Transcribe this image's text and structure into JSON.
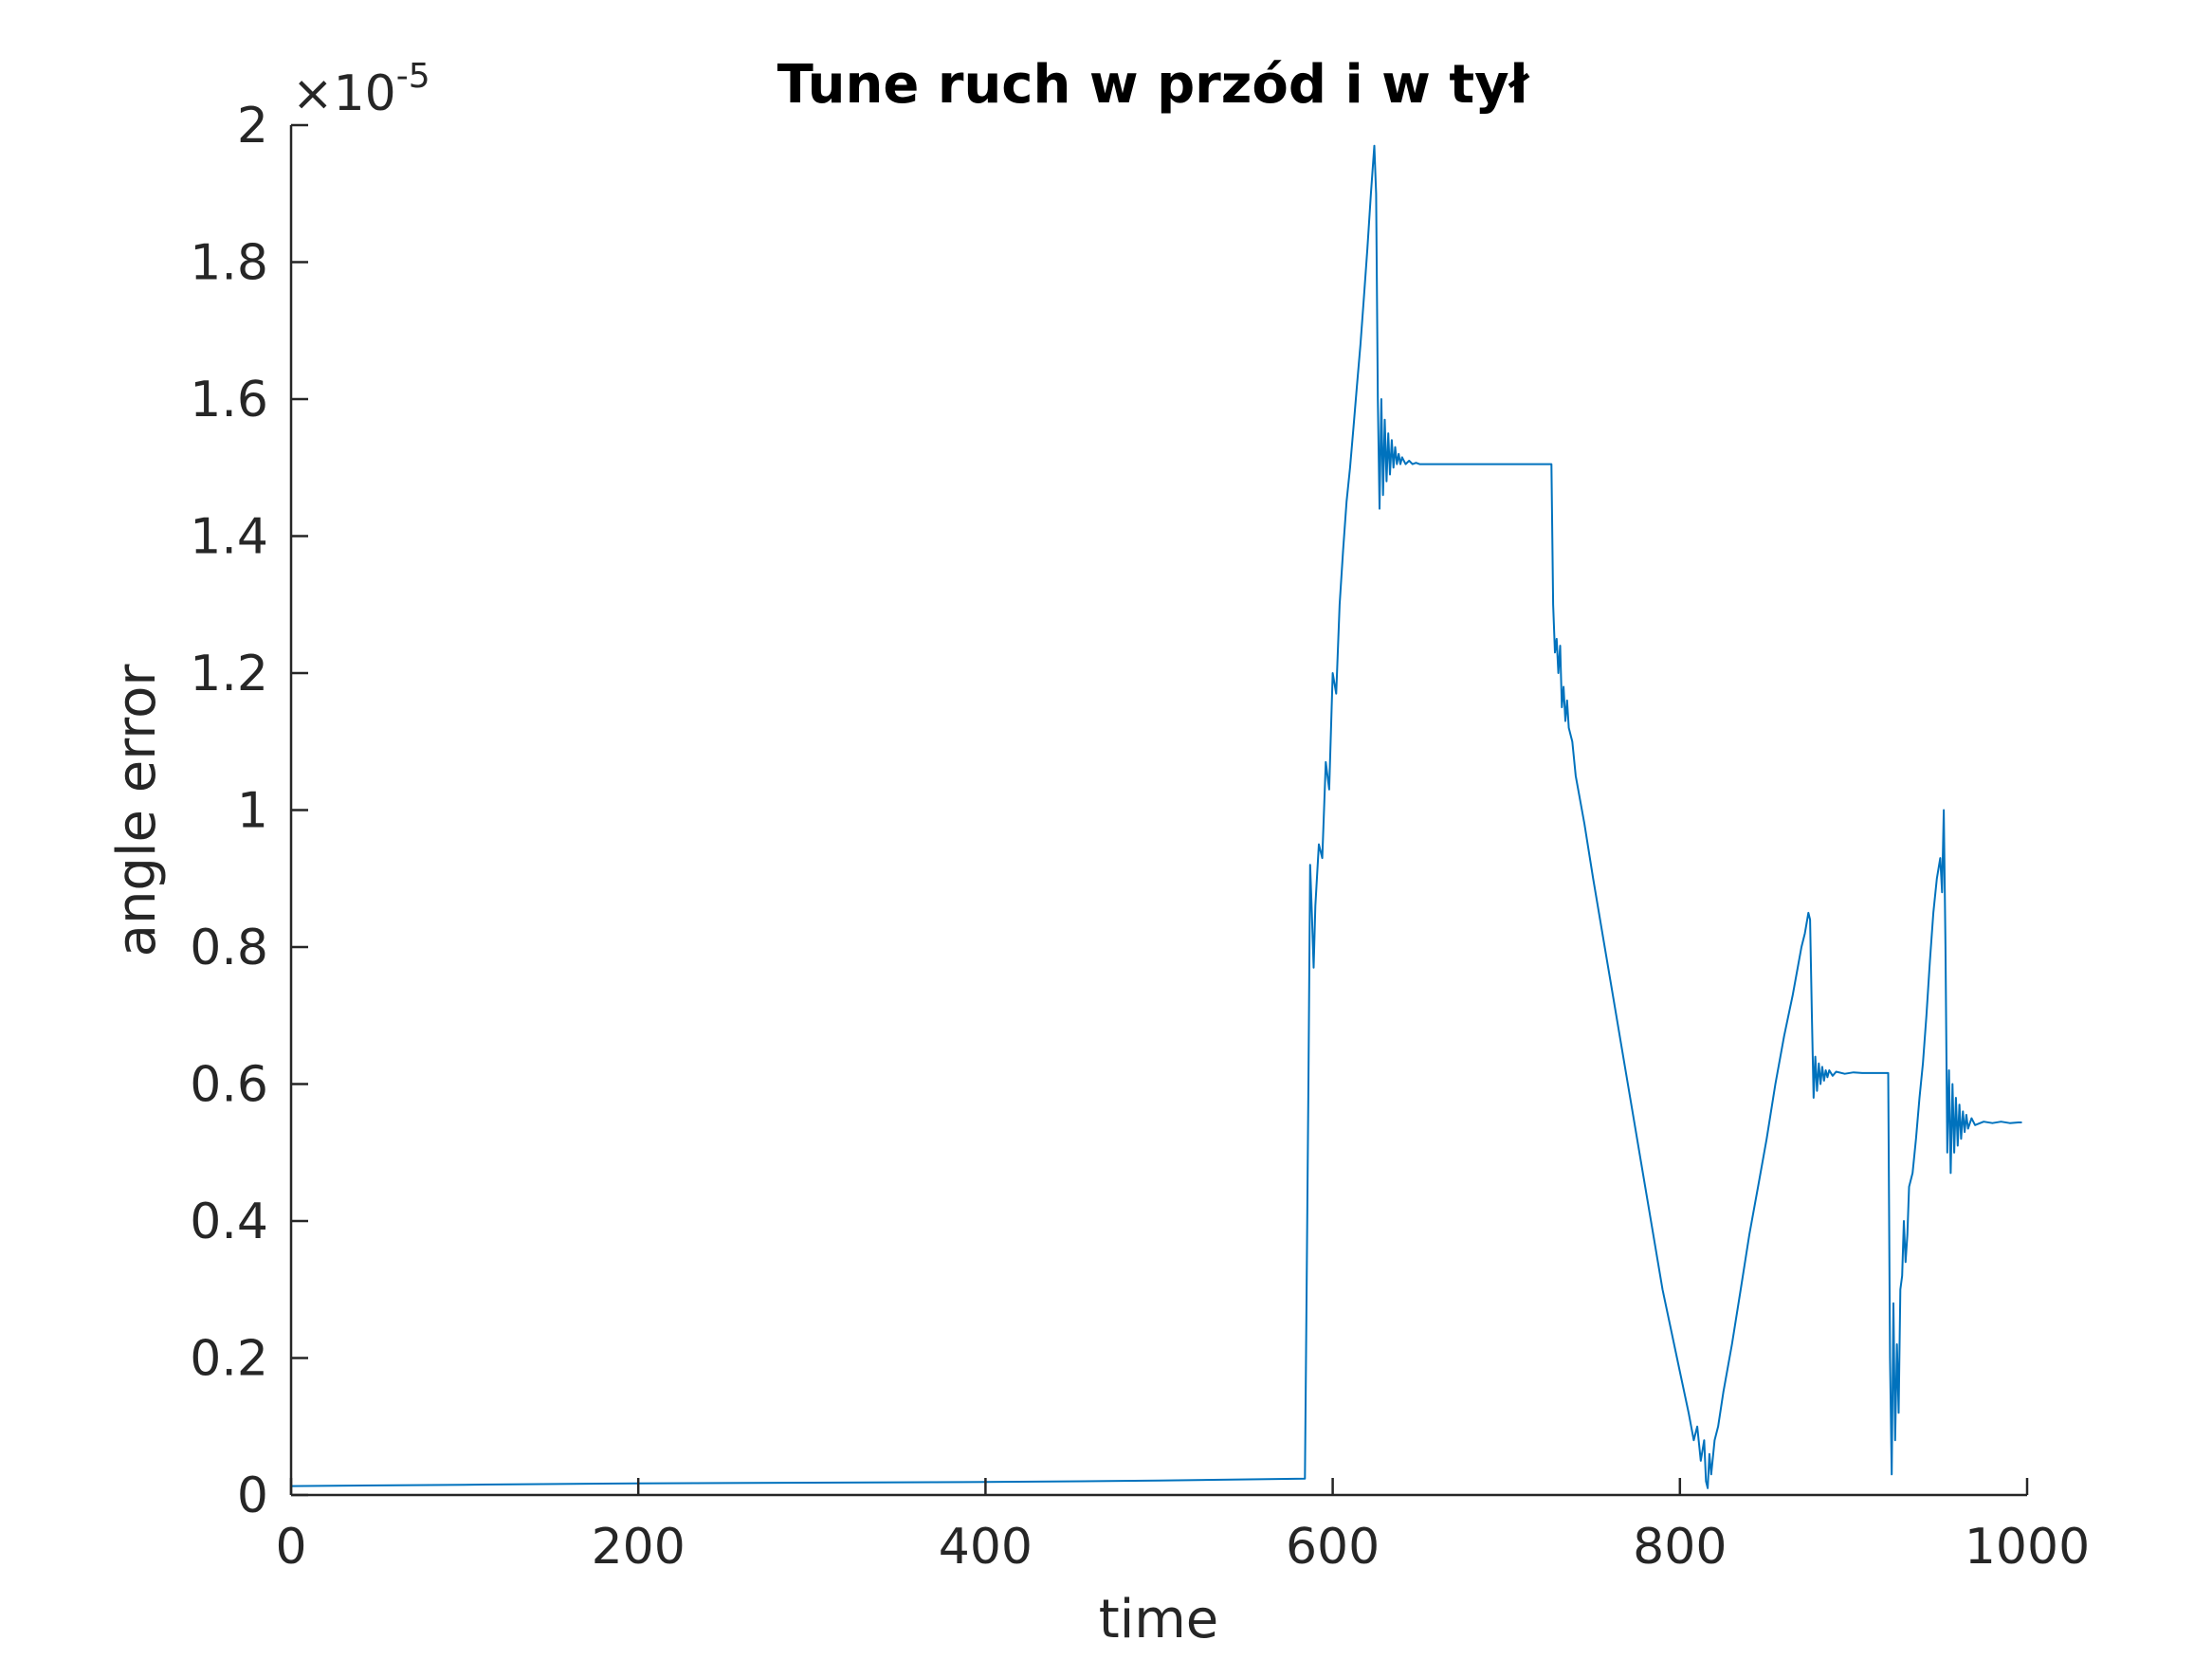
{
  "chart_data": {
    "type": "line",
    "title": "Tune ruch w przód i w tył",
    "xlabel": "time",
    "ylabel": "angle error",
    "xlim": [
      0,
      1000
    ],
    "ylim": [
      0,
      2
    ],
    "y_exponent_label": "×10",
    "y_exponent_power": "-5",
    "x_ticks": [
      {
        "value": 0,
        "label": "0"
      },
      {
        "value": 200,
        "label": "200"
      },
      {
        "value": 400,
        "label": "400"
      },
      {
        "value": 600,
        "label": "600"
      },
      {
        "value": 800,
        "label": "800"
      },
      {
        "value": 1000,
        "label": "1000"
      }
    ],
    "y_ticks": [
      {
        "value": 0,
        "label": "0"
      },
      {
        "value": 0.2,
        "label": "0.2"
      },
      {
        "value": 0.4,
        "label": "0.4"
      },
      {
        "value": 0.6,
        "label": "0.6"
      },
      {
        "value": 0.8,
        "label": "0.8"
      },
      {
        "value": 1,
        "label": "1"
      },
      {
        "value": 1.2,
        "label": "1.2"
      },
      {
        "value": 1.4,
        "label": "1.4"
      },
      {
        "value": 1.6,
        "label": "1.6"
      },
      {
        "value": 1.8,
        "label": "1.8"
      },
      {
        "value": 2,
        "label": "2"
      }
    ],
    "grid": false,
    "series": [
      {
        "color": "#0072BD",
        "x": [
          0,
          100,
          200,
          300,
          400,
          500,
          584,
          585,
          586,
          587,
          588,
          589,
          590,
          592,
          594,
          596,
          598,
          600,
          602,
          604,
          606,
          608,
          610,
          612,
          614,
          616,
          618,
          620,
          622,
          624,
          625,
          626,
          627,
          628,
          629,
          630,
          631,
          632,
          633,
          634,
          635,
          636,
          637,
          638,
          639,
          640,
          642,
          644,
          646,
          648,
          650,
          655,
          660,
          680,
          700,
          726,
          727,
          728,
          729,
          730,
          731,
          732,
          733,
          734,
          735,
          736,
          738,
          740,
          745,
          750,
          760,
          770,
          780,
          790,
          800,
          805,
          808,
          810,
          812,
          814,
          815,
          816,
          817,
          818,
          820,
          822,
          825,
          830,
          835,
          840,
          845,
          850,
          855,
          860,
          865,
          870,
          872,
          874,
          875,
          876,
          877,
          878,
          879,
          880,
          881,
          882,
          883,
          884,
          885,
          886,
          888,
          890,
          895,
          900,
          905,
          920,
          921,
          922,
          923,
          924,
          925,
          926,
          927,
          928,
          929,
          930,
          931,
          932,
          934,
          936,
          938,
          940,
          942,
          944,
          946,
          948,
          950,
          951,
          952,
          953,
          954,
          955,
          956,
          957,
          958,
          959,
          960,
          961,
          962,
          963,
          964,
          965,
          966,
          968,
          970,
          975,
          980,
          985,
          990,
          995,
          997
        ],
        "y": [
          0.013,
          0.015,
          0.017,
          0.018,
          0.019,
          0.021,
          0.024,
          0.3,
          0.6,
          0.92,
          0.85,
          0.77,
          0.86,
          0.95,
          0.93,
          1.07,
          1.03,
          1.2,
          1.17,
          1.3,
          1.38,
          1.45,
          1.5,
          1.56,
          1.62,
          1.68,
          1.75,
          1.82,
          1.9,
          1.97,
          1.9,
          1.6,
          1.44,
          1.6,
          1.46,
          1.57,
          1.48,
          1.55,
          1.49,
          1.54,
          1.5,
          1.53,
          1.505,
          1.52,
          1.505,
          1.515,
          1.505,
          1.51,
          1.505,
          1.507,
          1.505,
          1.505,
          1.505,
          1.505,
          1.505,
          1.505,
          1.3,
          1.23,
          1.25,
          1.2,
          1.24,
          1.15,
          1.18,
          1.13,
          1.16,
          1.12,
          1.1,
          1.05,
          0.98,
          0.9,
          0.75,
          0.6,
          0.45,
          0.3,
          0.18,
          0.12,
          0.08,
          0.1,
          0.05,
          0.08,
          0.02,
          0.01,
          0.06,
          0.03,
          0.08,
          0.1,
          0.15,
          0.22,
          0.3,
          0.38,
          0.45,
          0.52,
          0.6,
          0.67,
          0.73,
          0.8,
          0.82,
          0.85,
          0.84,
          0.7,
          0.58,
          0.64,
          0.59,
          0.63,
          0.6,
          0.625,
          0.605,
          0.62,
          0.61,
          0.62,
          0.612,
          0.618,
          0.615,
          0.617,
          0.616,
          0.616,
          0.2,
          0.03,
          0.28,
          0.08,
          0.22,
          0.12,
          0.3,
          0.32,
          0.4,
          0.34,
          0.38,
          0.45,
          0.47,
          0.52,
          0.58,
          0.63,
          0.7,
          0.78,
          0.85,
          0.9,
          0.93,
          0.88,
          1.0,
          0.8,
          0.5,
          0.62,
          0.47,
          0.6,
          0.5,
          0.58,
          0.51,
          0.57,
          0.52,
          0.56,
          0.53,
          0.555,
          0.535,
          0.55,
          0.54,
          0.545,
          0.543,
          0.545,
          0.543,
          0.544,
          0.544
        ]
      }
    ]
  }
}
